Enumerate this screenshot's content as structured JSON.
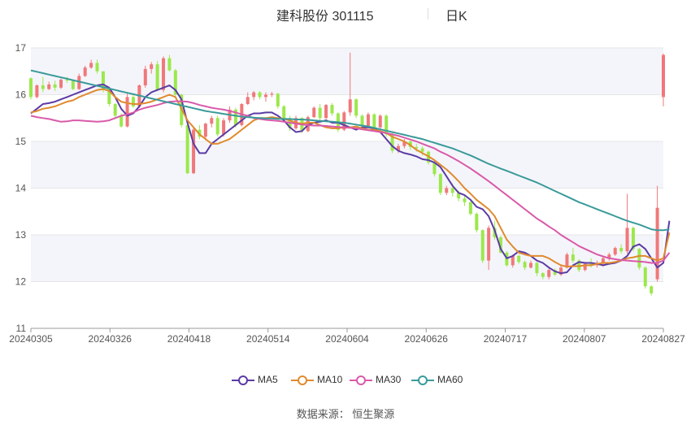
{
  "header": {
    "title": "建科股份 301115",
    "period": "日K"
  },
  "source": "数据来源： 恒生聚源",
  "colors": {
    "up": "#f0787a",
    "down": "#9be84c",
    "ma5": "#5b3ba5",
    "ma10": "#e08a2e",
    "ma30": "#d95aa9",
    "ma60": "#3a9a9a",
    "grid": "#e6e6e6",
    "band": "#f4f5fa"
  },
  "chart_data": {
    "type": "candlestick",
    "ylim": [
      11,
      17
    ],
    "yticks": [
      11,
      12,
      13,
      14,
      15,
      16,
      17
    ],
    "x_tick_labels": [
      "20240305",
      "20240326",
      "20240418",
      "20240514",
      "20240604",
      "20240626",
      "20240717",
      "20240807",
      "20240827"
    ],
    "legend": [
      {
        "name": "MA5",
        "color": "#5b3ba5"
      },
      {
        "name": "MA10",
        "color": "#e08a2e"
      },
      {
        "name": "MA30",
        "color": "#d95aa9"
      },
      {
        "name": "MA60",
        "color": "#3a9a9a"
      }
    ],
    "ohlc": [
      [
        16.35,
        16.37,
        15.9,
        15.95
      ],
      [
        15.95,
        16.22,
        15.92,
        16.2
      ],
      [
        16.2,
        16.38,
        16.05,
        16.12
      ],
      [
        16.12,
        16.28,
        16.1,
        16.22
      ],
      [
        16.22,
        16.3,
        16.08,
        16.15
      ],
      [
        16.15,
        16.35,
        16.12,
        16.32
      ],
      [
        16.32,
        16.38,
        16.25,
        16.3
      ],
      [
        16.3,
        16.3,
        16.1,
        16.12
      ],
      [
        16.12,
        16.45,
        16.1,
        16.4
      ],
      [
        16.4,
        16.62,
        16.38,
        16.58
      ],
      [
        16.58,
        16.75,
        16.55,
        16.68
      ],
      [
        16.68,
        16.75,
        16.45,
        16.5
      ],
      [
        16.5,
        16.5,
        16.05,
        16.12
      ],
      [
        16.12,
        16.15,
        15.75,
        15.8
      ],
      [
        15.8,
        15.82,
        15.48,
        15.55
      ],
      [
        15.55,
        15.6,
        15.3,
        15.32
      ],
      [
        15.32,
        16.05,
        15.3,
        15.95
      ],
      [
        15.95,
        16.0,
        15.72,
        15.75
      ],
      [
        15.75,
        16.22,
        15.72,
        16.2
      ],
      [
        16.2,
        16.62,
        16.15,
        16.55
      ],
      [
        16.55,
        16.7,
        16.45,
        16.65
      ],
      [
        16.65,
        16.72,
        16.08,
        16.1
      ],
      [
        16.1,
        16.82,
        16.05,
        16.78
      ],
      [
        16.78,
        16.85,
        16.5,
        16.52
      ],
      [
        16.52,
        16.55,
        15.95,
        16.0
      ],
      [
        16.0,
        16.02,
        15.3,
        15.35
      ],
      [
        15.35,
        15.4,
        14.3,
        14.32
      ],
      [
        14.32,
        15.3,
        14.3,
        15.25
      ],
      [
        15.25,
        15.35,
        15.05,
        15.1
      ],
      [
        15.1,
        15.4,
        15.02,
        15.38
      ],
      [
        15.38,
        15.55,
        15.3,
        15.5
      ],
      [
        15.5,
        15.55,
        15.1,
        15.15
      ],
      [
        15.15,
        15.5,
        15.1,
        15.45
      ],
      [
        15.45,
        15.75,
        15.4,
        15.68
      ],
      [
        15.68,
        15.72,
        15.3,
        15.35
      ],
      [
        15.35,
        15.82,
        15.32,
        15.8
      ],
      [
        15.8,
        16.05,
        15.78,
        15.95
      ],
      [
        15.95,
        16.08,
        15.88,
        16.05
      ],
      [
        16.05,
        16.08,
        15.9,
        15.95
      ],
      [
        15.95,
        16.05,
        15.85,
        16.0
      ],
      [
        16.0,
        16.06,
        15.95,
        16.02
      ],
      [
        16.02,
        16.04,
        15.7,
        15.75
      ],
      [
        15.75,
        15.78,
        15.42,
        15.48
      ],
      [
        15.48,
        15.55,
        15.22,
        15.28
      ],
      [
        15.28,
        15.55,
        15.25,
        15.5
      ],
      [
        15.5,
        15.52,
        15.18,
        15.22
      ],
      [
        15.22,
        15.55,
        15.2,
        15.52
      ],
      [
        15.52,
        15.75,
        15.5,
        15.72
      ],
      [
        15.72,
        15.8,
        15.45,
        15.5
      ],
      [
        15.5,
        15.8,
        15.48,
        15.78
      ],
      [
        15.78,
        15.82,
        15.55,
        15.6
      ],
      [
        15.6,
        15.62,
        15.2,
        15.25
      ],
      [
        15.25,
        15.65,
        15.22,
        15.62
      ],
      [
        15.62,
        16.9,
        15.55,
        15.9
      ],
      [
        15.9,
        15.92,
        15.5,
        15.55
      ],
      [
        15.55,
        15.58,
        15.28,
        15.32
      ],
      [
        15.32,
        15.62,
        15.3,
        15.58
      ],
      [
        15.58,
        15.6,
        15.25,
        15.3
      ],
      [
        15.3,
        15.58,
        15.28,
        15.55
      ],
      [
        15.55,
        15.58,
        15.1,
        15.15
      ],
      [
        15.15,
        15.18,
        14.75,
        14.8
      ],
      [
        14.8,
        14.95,
        14.75,
        14.9
      ],
      [
        14.9,
        15.05,
        14.85,
        15.0
      ],
      [
        15.0,
        15.02,
        14.82,
        14.88
      ],
      [
        14.88,
        14.95,
        14.78,
        14.85
      ],
      [
        14.85,
        14.9,
        14.7,
        14.78
      ],
      [
        14.78,
        14.8,
        14.5,
        14.55
      ],
      [
        14.55,
        14.58,
        14.25,
        14.3
      ],
      [
        14.3,
        14.32,
        13.85,
        13.9
      ],
      [
        13.9,
        14.05,
        13.85,
        14.0
      ],
      [
        14.0,
        14.1,
        13.82,
        13.9
      ],
      [
        13.9,
        13.95,
        13.72,
        13.78
      ],
      [
        13.78,
        13.85,
        13.62,
        13.7
      ],
      [
        13.7,
        13.72,
        13.42,
        13.45
      ],
      [
        13.45,
        13.48,
        13.05,
        13.1
      ],
      [
        13.1,
        13.12,
        12.4,
        12.45
      ],
      [
        12.45,
        13.2,
        12.25,
        13.15
      ],
      [
        13.15,
        13.3,
        12.9,
        12.95
      ],
      [
        12.95,
        12.98,
        12.6,
        12.62
      ],
      [
        12.62,
        12.65,
        12.32,
        12.35
      ],
      [
        12.35,
        12.58,
        12.3,
        12.55
      ],
      [
        12.55,
        12.58,
        12.38,
        12.42
      ],
      [
        12.42,
        12.45,
        12.25,
        12.3
      ],
      [
        12.3,
        12.45,
        12.28,
        12.4
      ],
      [
        12.4,
        12.42,
        12.12,
        12.18
      ],
      [
        12.18,
        12.2,
        12.05,
        12.1
      ],
      [
        12.1,
        12.3,
        12.05,
        12.25
      ],
      [
        12.25,
        12.28,
        12.12,
        12.15
      ],
      [
        12.15,
        12.35,
        12.12,
        12.3
      ],
      [
        12.3,
        12.62,
        12.28,
        12.58
      ],
      [
        12.58,
        12.72,
        12.4,
        12.45
      ],
      [
        12.45,
        12.48,
        12.2,
        12.25
      ],
      [
        12.25,
        12.42,
        12.22,
        12.38
      ],
      [
        12.38,
        12.5,
        12.3,
        12.35
      ],
      [
        12.35,
        12.45,
        12.3,
        12.4
      ],
      [
        12.4,
        12.55,
        12.32,
        12.5
      ],
      [
        12.5,
        12.62,
        12.45,
        12.58
      ],
      [
        12.58,
        12.75,
        12.55,
        12.72
      ],
      [
        12.72,
        12.8,
        12.6,
        12.65
      ],
      [
        12.65,
        13.88,
        12.6,
        13.15
      ],
      [
        13.15,
        13.18,
        12.65,
        12.7
      ],
      [
        12.7,
        12.72,
        12.25,
        12.3
      ],
      [
        12.3,
        12.32,
        11.85,
        11.9
      ],
      [
        11.9,
        11.92,
        11.7,
        11.75
      ],
      [
        12.05,
        14.05,
        12.0,
        13.58
      ],
      [
        15.95,
        16.88,
        15.75,
        16.85
      ]
    ],
    "ma": {
      "MA5": [
        15.6,
        15.7,
        15.8,
        15.82,
        15.85,
        15.9,
        15.95,
        16.0,
        16.05,
        16.1,
        16.15,
        16.2,
        16.22,
        16.15,
        15.95,
        15.7,
        15.55,
        15.6,
        15.75,
        15.95,
        16.05,
        16.1,
        16.15,
        16.2,
        16.1,
        15.9,
        15.4,
        14.95,
        14.75,
        14.75,
        14.95,
        15.05,
        15.15,
        15.25,
        15.35,
        15.45,
        15.55,
        15.6,
        15.6,
        15.62,
        15.62,
        15.55,
        15.45,
        15.3,
        15.2,
        15.22,
        15.35,
        15.4,
        15.42,
        15.45,
        15.4,
        15.4,
        15.35,
        15.3,
        15.25,
        15.3,
        15.3,
        15.28,
        15.2,
        15.05,
        14.9,
        14.8,
        14.75,
        14.72,
        14.68,
        14.62,
        14.6,
        14.55,
        14.45,
        14.25,
        14.05,
        13.9,
        13.85,
        13.75,
        13.6,
        13.55,
        13.4,
        13.1,
        12.7,
        12.5,
        12.55,
        12.65,
        12.62,
        12.55,
        12.45,
        12.4,
        12.3,
        12.22,
        12.18,
        12.2,
        12.35,
        12.42,
        12.4,
        12.4,
        12.38,
        12.35,
        12.38,
        12.4,
        12.45,
        12.55,
        12.75,
        12.8,
        12.7,
        12.5,
        12.3,
        12.4,
        13.3
      ],
      "MA10": [
        15.62,
        15.65,
        15.7,
        15.72,
        15.75,
        15.8,
        15.85,
        15.88,
        15.95,
        16.0,
        16.05,
        16.1,
        16.12,
        16.08,
        15.95,
        15.85,
        15.82,
        15.8,
        15.8,
        15.82,
        15.85,
        15.9,
        15.95,
        16.0,
        15.95,
        15.7,
        15.45,
        15.3,
        15.15,
        15.05,
        14.95,
        14.95,
        15.0,
        15.05,
        15.15,
        15.25,
        15.35,
        15.45,
        15.5,
        15.5,
        15.52,
        15.5,
        15.48,
        15.45,
        15.4,
        15.38,
        15.4,
        15.4,
        15.35,
        15.3,
        15.28,
        15.28,
        15.3,
        15.3,
        15.32,
        15.28,
        15.25,
        15.25,
        15.22,
        15.18,
        15.1,
        15.05,
        15.0,
        14.92,
        14.82,
        14.75,
        14.68,
        14.6,
        14.5,
        14.4,
        14.28,
        14.15,
        14.0,
        13.88,
        13.75,
        13.65,
        13.55,
        13.4,
        13.15,
        12.9,
        12.75,
        12.62,
        12.58,
        12.55,
        12.55,
        12.55,
        12.5,
        12.42,
        12.35,
        12.32,
        12.33,
        12.33,
        12.35,
        12.35,
        12.38,
        12.4,
        12.4,
        12.42,
        12.45,
        12.5,
        12.52,
        12.55,
        12.55,
        12.5,
        12.45,
        12.5,
        13.05
      ],
      "MA30": [
        15.55,
        15.52,
        15.5,
        15.48,
        15.45,
        15.42,
        15.43,
        15.45,
        15.45,
        15.44,
        15.43,
        15.42,
        15.43,
        15.45,
        15.5,
        15.55,
        15.58,
        15.62,
        15.68,
        15.72,
        15.75,
        15.78,
        15.82,
        15.85,
        15.86,
        15.86,
        15.85,
        15.82,
        15.78,
        15.75,
        15.72,
        15.7,
        15.68,
        15.65,
        15.62,
        15.58,
        15.55,
        15.5,
        15.48,
        15.46,
        15.45,
        15.44,
        15.42,
        15.4,
        15.38,
        15.36,
        15.35,
        15.34,
        15.34,
        15.33,
        15.32,
        15.31,
        15.3,
        15.29,
        15.28,
        15.26,
        15.24,
        15.22,
        15.2,
        15.18,
        15.15,
        15.12,
        15.08,
        15.04,
        15.0,
        14.95,
        14.9,
        14.85,
        14.78,
        14.72,
        14.65,
        14.58,
        14.5,
        14.42,
        14.33,
        14.24,
        14.15,
        14.05,
        13.95,
        13.85,
        13.75,
        13.65,
        13.55,
        13.45,
        13.35,
        13.27,
        13.18,
        13.1,
        13.0,
        12.92,
        12.84,
        12.76,
        12.7,
        12.64,
        12.58,
        12.54,
        12.5,
        12.48,
        12.46,
        12.45,
        12.44,
        12.43,
        12.42,
        12.4,
        12.4,
        12.45,
        12.62
      ],
      "MA60": [
        16.52,
        16.49,
        16.46,
        16.43,
        16.4,
        16.37,
        16.34,
        16.31,
        16.28,
        16.25,
        16.22,
        16.19,
        16.16,
        16.13,
        16.1,
        16.07,
        16.04,
        16.01,
        15.98,
        15.95,
        15.92,
        15.89,
        15.86,
        15.83,
        15.8,
        15.77,
        15.74,
        15.71,
        15.68,
        15.65,
        15.63,
        15.61,
        15.59,
        15.57,
        15.55,
        15.53,
        15.52,
        15.51,
        15.5,
        15.49,
        15.49,
        15.48,
        15.48,
        15.48,
        15.47,
        15.47,
        15.46,
        15.45,
        15.44,
        15.43,
        15.42,
        15.41,
        15.4,
        15.38,
        15.36,
        15.34,
        15.32,
        15.29,
        15.26,
        15.23,
        15.2,
        15.17,
        15.14,
        15.11,
        15.08,
        15.05,
        15.01,
        14.97,
        14.93,
        14.89,
        14.85,
        14.8,
        14.75,
        14.7,
        14.64,
        14.58,
        14.52,
        14.47,
        14.42,
        14.37,
        14.32,
        14.27,
        14.22,
        14.17,
        14.12,
        14.06,
        14.0,
        13.94,
        13.88,
        13.82,
        13.76,
        13.7,
        13.65,
        13.6,
        13.55,
        13.5,
        13.45,
        13.4,
        13.35,
        13.3,
        13.26,
        13.22,
        13.17,
        13.12,
        13.1,
        13.1,
        13.12
      ]
    }
  }
}
